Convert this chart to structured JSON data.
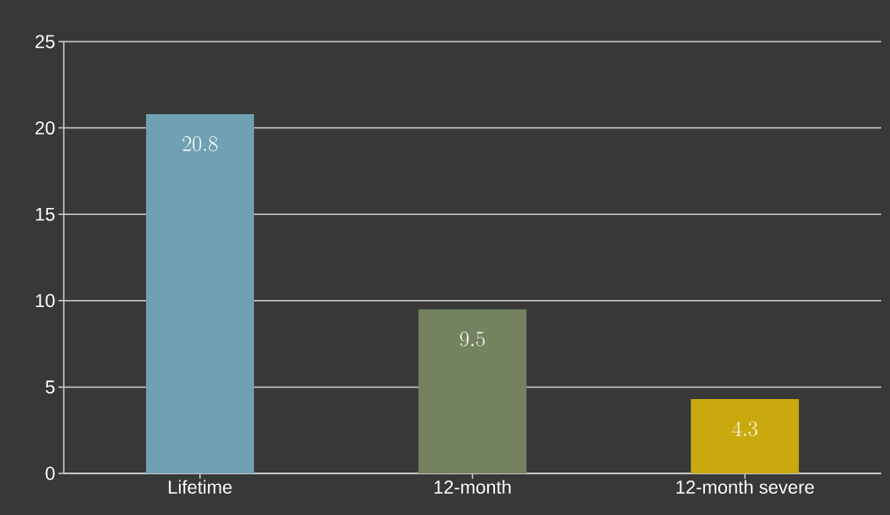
{
  "chart_data": {
    "type": "bar",
    "categories": [
      "Lifetime",
      "12-month",
      "12-month severe"
    ],
    "values": [
      20.8,
      9.5,
      4.3
    ],
    "colors": [
      "#6fa1b2",
      "#748260",
      "#c9a90e"
    ],
    "ylim": [
      0,
      25
    ],
    "yticks": [
      0,
      5,
      10,
      15,
      20,
      25
    ],
    "grid": "y",
    "data_labels": true
  }
}
